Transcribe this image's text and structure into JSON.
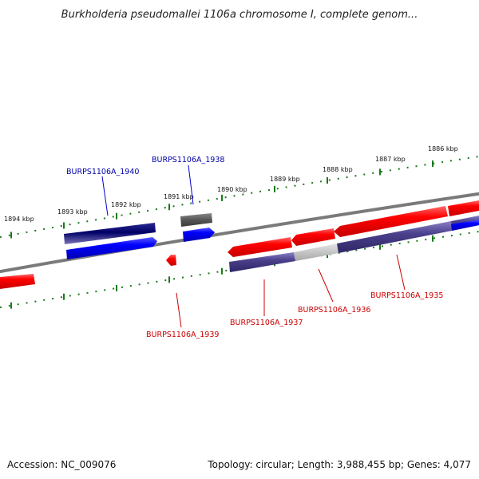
{
  "title": "Burkholderia pseudomallei 1106a chromosome I, complete genom...",
  "footer": {
    "accession": "Accession: NC_009076",
    "summary": "Topology: circular; Length: 3,988,455 bp; Genes: 4,077"
  },
  "kbp_labels": [
    "1894 kbp",
    "1893 kbp",
    "1892 kbp",
    "1891 kbp",
    "1890 kbp",
    "1889 kbp",
    "1888 kbp",
    "1887 kbp",
    "1886 kbp"
  ],
  "genes": [
    {
      "name": "BURPS1106A_1940",
      "strand": "plus",
      "color": "#0000aa"
    },
    {
      "name": "BURPS1106A_1938",
      "strand": "plus",
      "color": "#0000aa"
    },
    {
      "name": "BURPS1106A_1939",
      "strand": "minus",
      "color": "#cc0000"
    },
    {
      "name": "BURPS1106A_1937",
      "strand": "minus",
      "color": "#cc0000"
    },
    {
      "name": "BURPS1106A_1936",
      "strand": "minus",
      "color": "#cc0000"
    },
    {
      "name": "BURPS1106A_1935",
      "strand": "minus",
      "color": "#cc0000"
    }
  ],
  "colors": {
    "plus_strand": "#0000ff",
    "minus_strand": "#ff0000",
    "backbone": "#808080",
    "tick": "#1a7a1a",
    "orf_dark": "#4a3f8a",
    "orf_navy": "#000066"
  }
}
